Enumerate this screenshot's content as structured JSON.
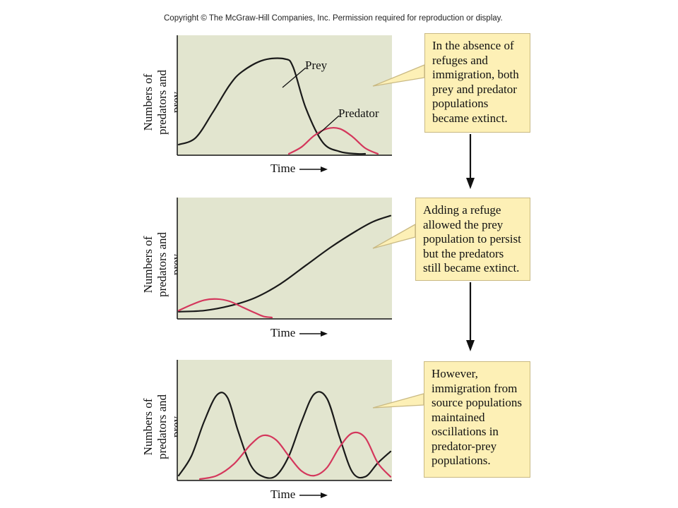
{
  "copyright": "Copyright © The McGraw-Hill Companies, Inc. Permission required for reproduction or display.",
  "colors": {
    "prey": "#1a1a1a",
    "predator": "#d4375c",
    "plot_bg": "#e2e5cf",
    "callout_bg": "#fdf0b6"
  },
  "chart_data": [
    {
      "type": "line",
      "ylabel": [
        "Numbers of",
        "predators and prey"
      ],
      "xlabel": "Time",
      "series": [
        {
          "name": "Prey",
          "x": [
            0,
            8,
            16,
            24,
            30,
            40,
            50,
            54,
            60,
            68,
            76,
            84,
            88
          ],
          "y": [
            0.08,
            0.14,
            0.36,
            0.6,
            0.72,
            0.82,
            0.83,
            0.76,
            0.4,
            0.1,
            0.02,
            0.0,
            0.0
          ]
        },
        {
          "name": "Predator",
          "x": [
            52,
            58,
            64,
            70,
            76,
            82,
            88,
            94
          ],
          "y": [
            0.0,
            0.06,
            0.16,
            0.22,
            0.22,
            0.15,
            0.05,
            0.0
          ]
        }
      ],
      "annotations": [
        "Prey",
        "Predator"
      ]
    },
    {
      "type": "line",
      "ylabel": [
        "Numbers of",
        "predators and prey"
      ],
      "xlabel": "Time",
      "series": [
        {
          "name": "Prey",
          "x": [
            0,
            12,
            24,
            36,
            48,
            60,
            72,
            84,
            92,
            100
          ],
          "y": [
            0.05,
            0.06,
            0.1,
            0.17,
            0.29,
            0.45,
            0.61,
            0.75,
            0.83,
            0.88
          ]
        },
        {
          "name": "Predator",
          "x": [
            0,
            6,
            12,
            18,
            24,
            30,
            36,
            40,
            44
          ],
          "y": [
            0.06,
            0.11,
            0.15,
            0.16,
            0.14,
            0.09,
            0.04,
            0.01,
            0.0
          ]
        }
      ]
    },
    {
      "type": "line",
      "ylabel": [
        "Numbers of",
        "predators and prey"
      ],
      "xlabel": "Time",
      "series": [
        {
          "name": "Prey",
          "x": [
            0,
            6,
            12,
            18,
            23,
            28,
            34,
            40,
            46,
            52,
            58,
            64,
            70,
            76,
            82,
            88,
            94,
            100
          ],
          "y": [
            0.03,
            0.2,
            0.5,
            0.73,
            0.71,
            0.42,
            0.12,
            0.02,
            0.03,
            0.2,
            0.5,
            0.74,
            0.7,
            0.36,
            0.06,
            0.02,
            0.14,
            0.24
          ]
        },
        {
          "name": "Predator",
          "x": [
            10,
            18,
            26,
            34,
            40,
            46,
            52,
            58,
            64,
            70,
            76,
            82,
            88,
            94,
            100
          ],
          "y": [
            0.0,
            0.03,
            0.13,
            0.3,
            0.38,
            0.34,
            0.2,
            0.07,
            0.03,
            0.1,
            0.28,
            0.4,
            0.36,
            0.14,
            0.02
          ]
        }
      ]
    }
  ],
  "callouts": [
    [
      "In the absence of",
      "refuges and",
      "immigration, both",
      "prey and predator",
      "populations",
      "became extinct."
    ],
    [
      "Adding a refuge",
      "allowed the prey",
      "population to persist",
      "but the predators",
      "still became extinct."
    ],
    [
      "However,",
      "immigration from",
      "source populations",
      "maintained",
      "oscillations in",
      "predator-prey",
      "populations."
    ]
  ]
}
